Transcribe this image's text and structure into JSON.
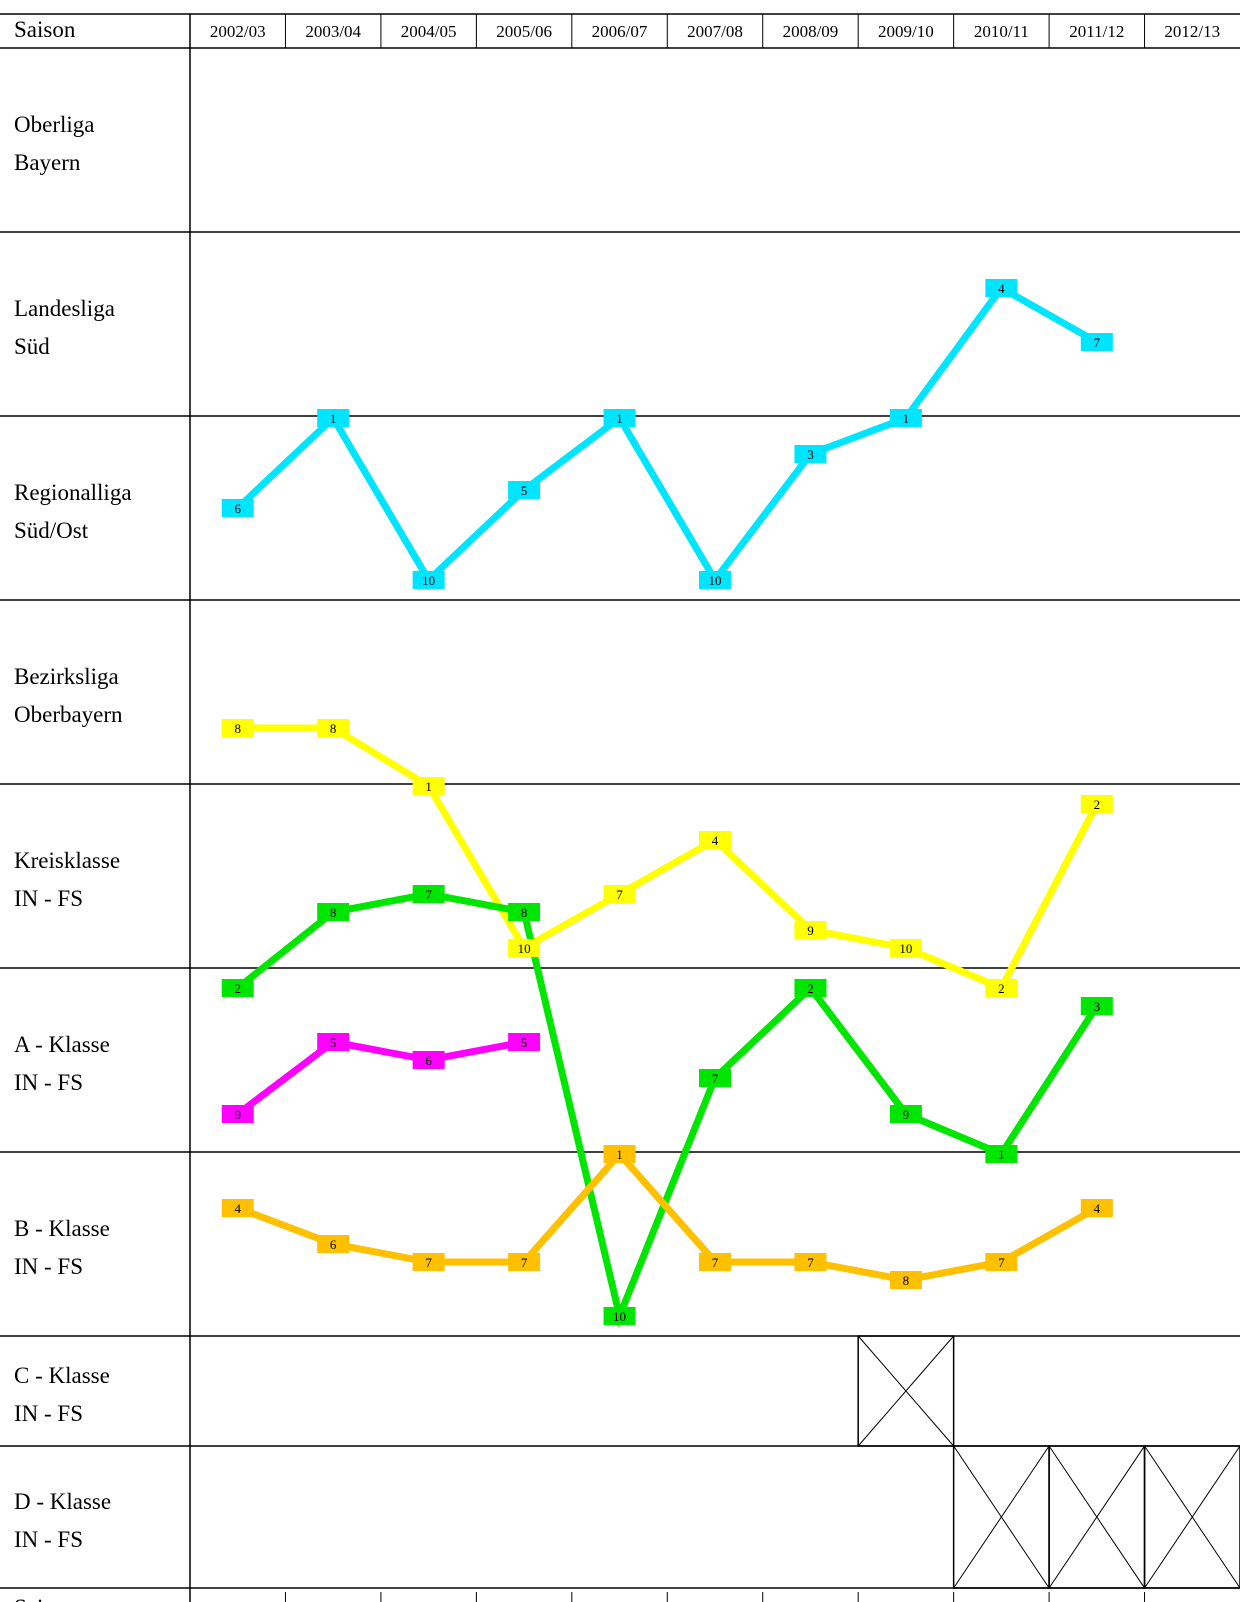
{
  "chart_data": {
    "type": "line",
    "title": "",
    "header_label": "Saison",
    "seasons": [
      "2002/03",
      "2003/04",
      "2004/05",
      "2005/06",
      "2006/07",
      "2007/08",
      "2008/09",
      "2009/10",
      "2010/11",
      "2011/12",
      "2012/13"
    ],
    "leagues": [
      {
        "line1": "Oberliga",
        "line2": "Bayern"
      },
      {
        "line1": "Landesliga",
        "line2": "Süd"
      },
      {
        "line1": "Regionalliga",
        "line2": "Süd/Ost"
      },
      {
        "line1": "Bezirksliga",
        "line2": "Oberbayern"
      },
      {
        "line1": "Kreisklasse",
        "line2": "IN - FS"
      },
      {
        "line1": "A - Klasse",
        "line2": "IN - FS"
      },
      {
        "line1": "B - Klasse",
        "line2": "IN - FS"
      },
      {
        "line1": "C - Klasse",
        "line2": "IN - FS"
      },
      {
        "line1": "D - Klasse",
        "line2": "IN - FS"
      }
    ],
    "not_held": [
      {
        "league": 7,
        "season": 7
      },
      {
        "league": 8,
        "season": 8
      },
      {
        "league": 8,
        "season": 9
      },
      {
        "league": 8,
        "season": 10
      }
    ],
    "series": [
      {
        "color": "#00e5ff",
        "points": [
          {
            "season": 0,
            "league": 2,
            "position": 6
          },
          {
            "season": 1,
            "league": 2,
            "position": 1
          },
          {
            "season": 2,
            "league": 2,
            "position": 10
          },
          {
            "season": 3,
            "league": 2,
            "position": 5
          },
          {
            "season": 4,
            "league": 2,
            "position": 1
          },
          {
            "season": 5,
            "league": 2,
            "position": 10
          },
          {
            "season": 6,
            "league": 2,
            "position": 3
          },
          {
            "season": 7,
            "league": 2,
            "position": 1
          },
          {
            "season": 8,
            "league": 1,
            "position": 4
          },
          {
            "season": 9,
            "league": 1,
            "position": 7
          }
        ]
      },
      {
        "color": "#ffff00",
        "points": [
          {
            "season": 0,
            "league": 3,
            "position": 8
          },
          {
            "season": 1,
            "league": 3,
            "position": 8
          },
          {
            "season": 2,
            "league": 4,
            "position": 1
          },
          {
            "season": 3,
            "league": 4,
            "position": 10
          },
          {
            "season": 4,
            "league": 4,
            "position": 7
          },
          {
            "season": 5,
            "league": 4,
            "position": 4
          },
          {
            "season": 6,
            "league": 4,
            "position": 9
          },
          {
            "season": 7,
            "league": 4,
            "position": 10
          },
          {
            "season": 8,
            "league": 5,
            "position": 2
          },
          {
            "season": 9,
            "league": 4,
            "position": 2
          }
        ]
      },
      {
        "color": "#00e600",
        "points": [
          {
            "season": 0,
            "league": 5,
            "position": 2
          },
          {
            "season": 1,
            "league": 4,
            "position": 8
          },
          {
            "season": 2,
            "league": 4,
            "position": 7
          },
          {
            "season": 3,
            "league": 4,
            "position": 8
          },
          {
            "season": 4,
            "league": 6,
            "position": 10
          },
          {
            "season": 5,
            "league": 5,
            "position": 7
          },
          {
            "season": 6,
            "league": 5,
            "position": 2
          },
          {
            "season": 7,
            "league": 5,
            "position": 9
          },
          {
            "season": 8,
            "league": 6,
            "position": 1
          },
          {
            "season": 9,
            "league": 5,
            "position": 3
          }
        ]
      },
      {
        "color": "#ff00ff",
        "points": [
          {
            "season": 0,
            "league": 5,
            "position": 9
          },
          {
            "season": 1,
            "league": 5,
            "position": 5
          },
          {
            "season": 2,
            "league": 5,
            "position": 6
          },
          {
            "season": 3,
            "league": 5,
            "position": 5
          }
        ]
      },
      {
        "color": "#ffc000",
        "points": [
          {
            "season": 0,
            "league": 6,
            "position": 4
          },
          {
            "season": 1,
            "league": 6,
            "position": 6
          },
          {
            "season": 2,
            "league": 6,
            "position": 7
          },
          {
            "season": 3,
            "league": 6,
            "position": 7
          },
          {
            "season": 4,
            "league": 6,
            "position": 1
          },
          {
            "season": 5,
            "league": 6,
            "position": 7
          },
          {
            "season": 6,
            "league": 6,
            "position": 7
          },
          {
            "season": 7,
            "league": 6,
            "position": 8
          },
          {
            "season": 8,
            "league": 6,
            "position": 7
          },
          {
            "season": 9,
            "league": 6,
            "position": 4
          }
        ]
      }
    ]
  }
}
